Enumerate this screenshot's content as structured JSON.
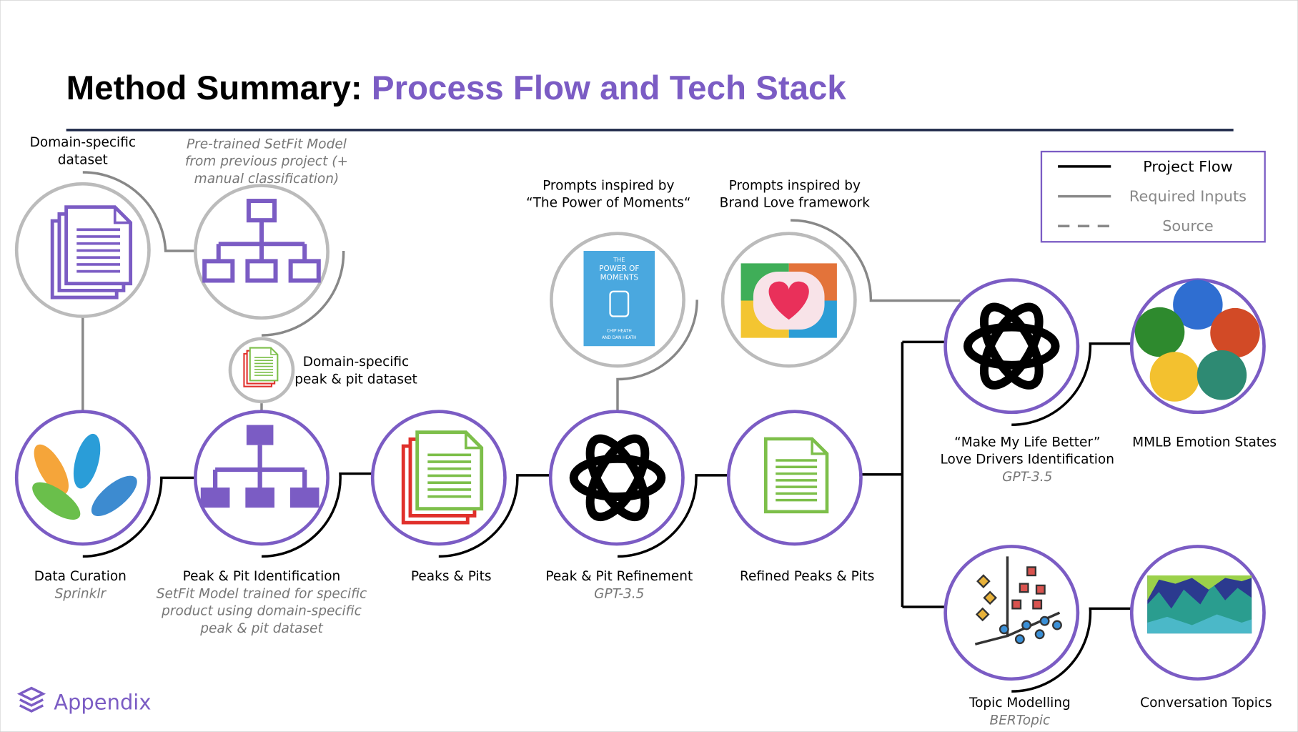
{
  "title": {
    "lead": "Method Summary:",
    "highlight": "Process Flow and Tech Stack"
  },
  "legend": [
    "Project Flow",
    "Required Inputs",
    "Source"
  ],
  "inputs": [
    {
      "lines": [
        "Domain-specific",
        "dataset"
      ]
    },
    {
      "lines": [
        "Pre-trained SetFit Model",
        "from previous project (+",
        "manual classification)"
      ]
    },
    {
      "lines": [
        "Domain-specific",
        "peak & pit dataset"
      ]
    },
    {
      "lines": [
        "Prompts inspired by",
        "“The Power of Moments“"
      ]
    },
    {
      "lines": [
        "Prompts inspired by",
        "Brand Love framework"
      ]
    }
  ],
  "steps": [
    {
      "label": [
        "Data Curation"
      ],
      "tool": [
        "Sprinklr"
      ]
    },
    {
      "label": [
        "Peak & Pit Identification"
      ],
      "tool": [
        "SetFit Model trained for specific",
        "product using domain-specific",
        "peak & pit dataset"
      ]
    },
    {
      "label": [
        "Peaks & Pits"
      ]
    },
    {
      "label": [
        "Peak & Pit Refinement"
      ],
      "tool": [
        "GPT-3.5"
      ]
    },
    {
      "label": [
        "Refined Peaks & Pits"
      ]
    },
    {
      "label": [
        "“Make My Life Better”",
        "Love Drivers Identification"
      ],
      "tool": [
        "GPT-3.5"
      ]
    },
    {
      "label": [
        "MMLB Emotion States"
      ]
    },
    {
      "label": [
        "Topic Modelling"
      ],
      "tool": [
        "BERTopic"
      ]
    },
    {
      "label": [
        "Conversation Topics"
      ]
    }
  ],
  "book": {
    "title": [
      "THE",
      "POWER OF",
      "MOMENTS"
    ],
    "authors": [
      "CHIP HEATH",
      "AND DAN HEATH"
    ]
  },
  "footer": "Appendix"
}
